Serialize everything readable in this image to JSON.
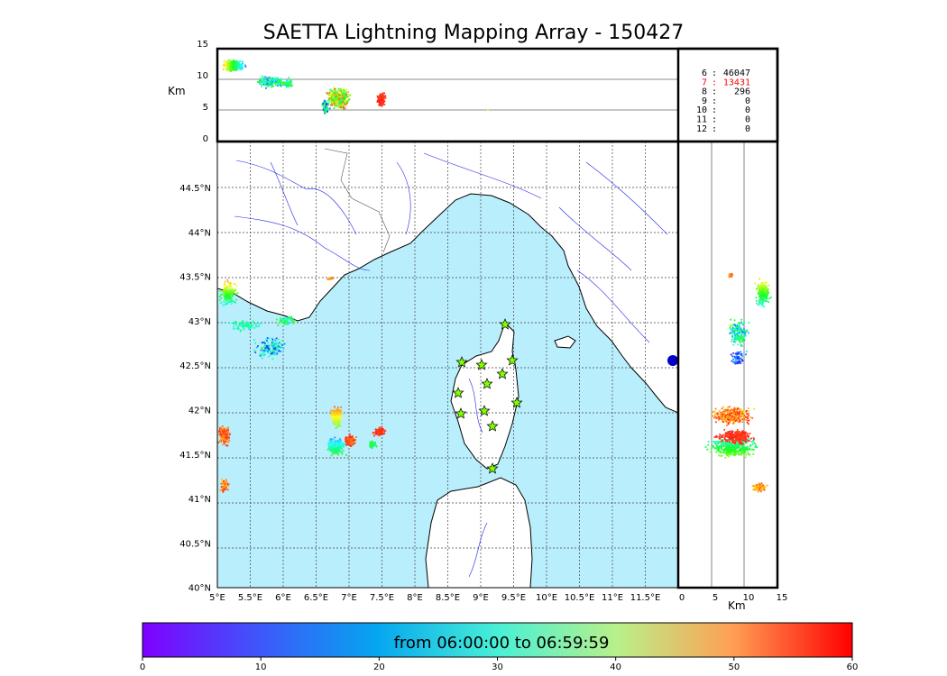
{
  "title": "SAETTA Lightning Mapping Array - 150427",
  "top_panel": {
    "ylabel": "Km",
    "yticks": [
      "15",
      "10",
      "5",
      "0"
    ]
  },
  "side_panel": {
    "xlabel": "Km",
    "xticks": [
      "0",
      "5",
      "10",
      "15"
    ]
  },
  "map": {
    "lon_ticks": [
      "5°E",
      "5.5°E",
      "6°E",
      "6.5°E",
      "7°E",
      "7.5°E",
      "8°E",
      "8.5°E",
      "9°E",
      "9.5°E",
      "10°E",
      "10.5°E",
      "11°E",
      "11.5°E"
    ],
    "lat_ticks": [
      "44.5°N",
      "44°N",
      "43.5°N",
      "43°N",
      "42.5°N",
      "42°N",
      "41.5°N",
      "41°N",
      "40.5°N",
      "40°N"
    ],
    "sea_color": "#b9eefc",
    "land_color": "#ffffff",
    "river_color": "#2222ee",
    "station_color": "#7fff00",
    "station_icon": "star-icon"
  },
  "counts": [
    {
      "hour": "6",
      "sep": ":",
      "value": "46047",
      "color": "#000000"
    },
    {
      "hour": "7",
      "sep": ":",
      "value": "13431",
      "color": "#ff0000"
    },
    {
      "hour": "8",
      "sep": ":",
      "value": "296",
      "color": "#000000"
    },
    {
      "hour": "9",
      "sep": ":",
      "value": "0",
      "color": "#000000"
    },
    {
      "hour": "10",
      "sep": ":",
      "value": "0",
      "color": "#000000"
    },
    {
      "hour": "11",
      "sep": ":",
      "value": "0",
      "color": "#000000"
    },
    {
      "hour": "12",
      "sep": ":",
      "value": "0",
      "color": "#000000"
    }
  ],
  "colorbar": {
    "label": "from 06:00:00 to 06:59:59",
    "ticks": [
      "0",
      "10",
      "20",
      "30",
      "40",
      "50",
      "60"
    ],
    "colormap": "rainbow"
  }
}
